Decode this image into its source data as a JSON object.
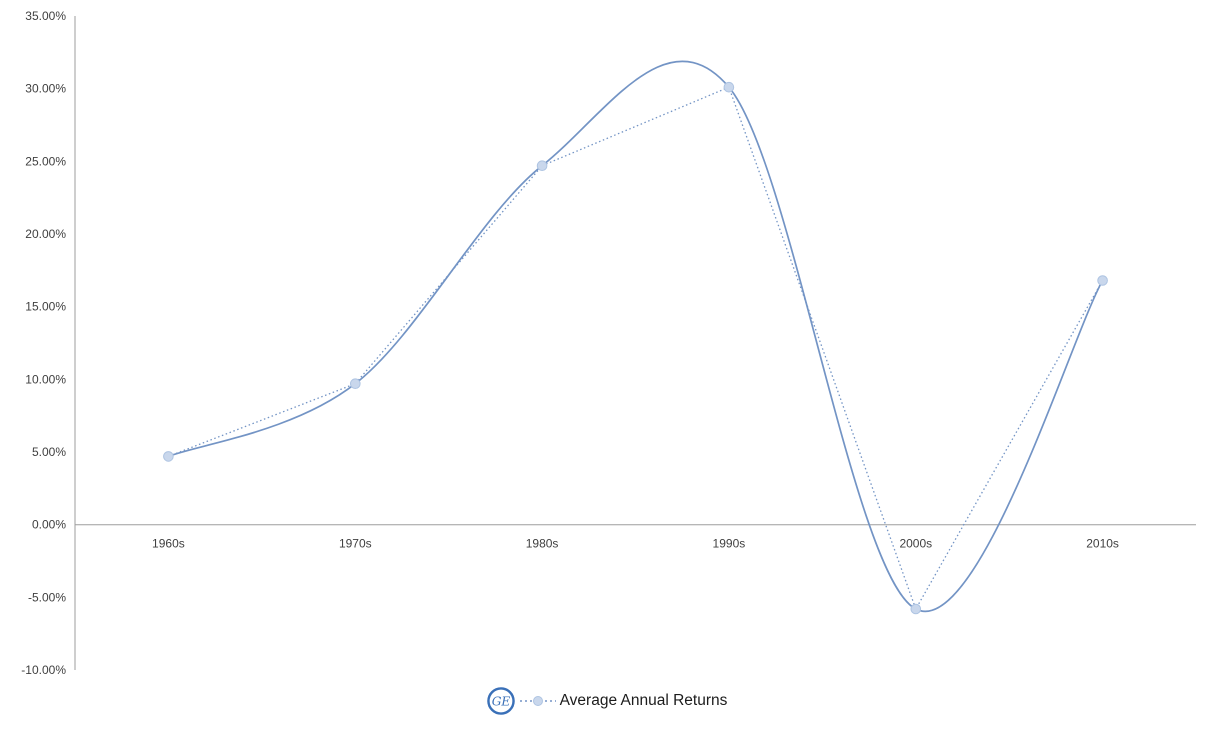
{
  "chart_data": {
    "type": "line",
    "title": "",
    "categories": [
      "1960s",
      "1970s",
      "1980s",
      "1990s",
      "2000s",
      "2010s"
    ],
    "series": [
      {
        "name": "Average Annual Returns",
        "values": [
          4.7,
          9.7,
          24.7,
          30.1,
          -5.8,
          16.8
        ],
        "render": [
          "smooth-solid-line",
          "straight-dotted-line-with-circle-markers"
        ]
      }
    ],
    "y_axis": {
      "min": -10,
      "max": 35,
      "step": 5,
      "format": "percent-2-decimals",
      "tick_labels": [
        "35.00%",
        "30.00%",
        "25.00%",
        "20.00%",
        "15.00%",
        "10.00%",
        "5.00%",
        "0.00%",
        "-5.00%",
        "-10.00%"
      ]
    },
    "x_axis": {
      "tick_labels": [
        "1960s",
        "1970s",
        "1980s",
        "1990s",
        "2000s",
        "2010s"
      ],
      "position": "below-zero-line"
    },
    "grid": "off",
    "legend": {
      "position": "bottom-center",
      "items": [
        {
          "icon": "ge-logo-icon",
          "monogram": "GE",
          "marker": "dotted-line-with-circle-marker",
          "label": "Average Annual Returns"
        }
      ]
    }
  },
  "colors": {
    "line": "#7394c5",
    "marker_fill": "#c9d7ec",
    "marker_stroke": "#aec4e2",
    "axis": "#9d9d9d",
    "tick_text": "#3f3f3f",
    "legend_text": "#1c1c1c",
    "ge_blue": "#3a70b8",
    "background": "#ffffff"
  }
}
